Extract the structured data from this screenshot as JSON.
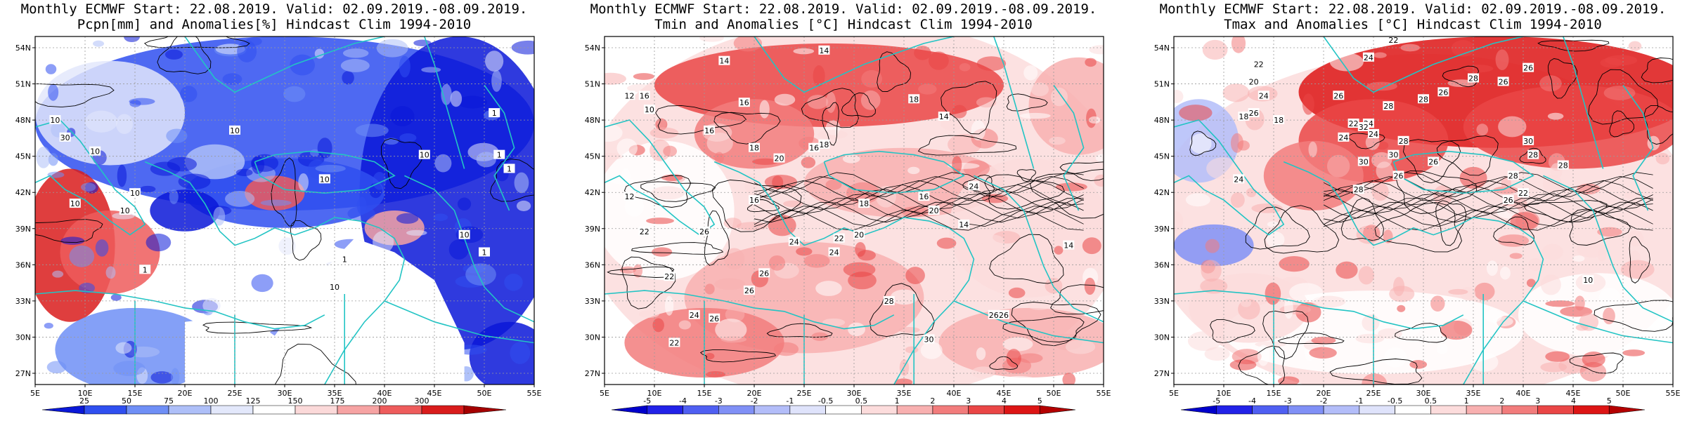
{
  "panels": [
    {
      "title_line1": "Monthly ECMWF Start: 22.08.2019. Valid: 02.09.2019.-08.09.2019.",
      "title_line2": "Pcpn[mm] and Anomalies[%] Hindcast Clim 1994-2010",
      "variable": "precipitation",
      "colorbar_ticks": [
        "25",
        "50",
        "75",
        "100",
        "125",
        "150",
        "175",
        "200",
        "300"
      ],
      "colorbar_colors": [
        "#0a18d8",
        "#2f4ff0",
        "#6f8ff6",
        "#aebff8",
        "#e3e8fb",
        "#ffffff",
        "#fbd9d9",
        "#f6a3a3",
        "#ee5c5c",
        "#d91c1c",
        "#a50000"
      ],
      "contour_labels": [
        "10",
        "10",
        "10",
        "10",
        "10",
        "1",
        "1",
        "1",
        "10",
        "10",
        "10",
        "1",
        "1",
        "30",
        "10",
        "10",
        "1"
      ]
    },
    {
      "title_line1": "Monthly ECMWF Start: 22.08.2019. Valid: 02.09.2019.-08.09.2019.",
      "title_line2": "Tmin and Anomalies [°C] Hindcast Clim 1994-2010",
      "variable": "tmin",
      "colorbar_ticks": [
        "-5",
        "-4",
        "-3",
        "-2",
        "-1",
        "-0.5",
        "0.5",
        "1",
        "2",
        "3",
        "4",
        "5"
      ],
      "colorbar_colors": [
        "#0000cc",
        "#2222e8",
        "#4f5ff2",
        "#8090f6",
        "#b3bdf9",
        "#dfe3fb",
        "#ffffff",
        "#fcdcdc",
        "#f8b0b0",
        "#f27c7c",
        "#ea4646",
        "#dd1515",
        "#b40000"
      ],
      "contour_labels": [
        "14",
        "14",
        "16",
        "16",
        "18",
        "12",
        "10",
        "16",
        "14",
        "16",
        "18",
        "20",
        "18",
        "16",
        "20",
        "12",
        "22",
        "16",
        "14",
        "24",
        "26",
        "22",
        "26",
        "24",
        "26",
        "24",
        "22",
        "20",
        "18",
        "26",
        "26",
        "28",
        "30",
        "22",
        "26",
        "14",
        "24"
      ]
    },
    {
      "title_line1": "Monthly ECMWF Start: 22.08.2019. Valid: 02.09.2019.-08.09.2019.",
      "title_line2": "Tmax and Anomalies [°C] Hindcast Clim 1994-2010",
      "variable": "tmax",
      "colorbar_ticks": [
        "-5",
        "-4",
        "-3",
        "-2",
        "-1",
        "-0.5",
        "0.5",
        "1",
        "2",
        "3",
        "4",
        "5"
      ],
      "colorbar_colors": [
        "#0000cc",
        "#2222e8",
        "#4f5ff2",
        "#8090f6",
        "#b3bdf9",
        "#dfe3fb",
        "#ffffff",
        "#fcdcdc",
        "#f8b0b0",
        "#f27c7c",
        "#ea4646",
        "#dd1515",
        "#b40000"
      ],
      "contour_labels": [
        "22",
        "22",
        "20",
        "24",
        "26",
        "24",
        "26",
        "28",
        "28",
        "24",
        "26",
        "18",
        "22",
        "24",
        "30",
        "26",
        "28",
        "30",
        "26",
        "28",
        "18",
        "24",
        "26",
        "22",
        "28",
        "26",
        "26",
        "28",
        "30",
        "28",
        "28",
        "32",
        "10",
        "24"
      ]
    }
  ],
  "axes": {
    "lat_ticks": [
      "54N",
      "51N",
      "48N",
      "45N",
      "42N",
      "39N",
      "36N",
      "33N",
      "30N",
      "27N"
    ],
    "lon_ticks": [
      "5E",
      "10E",
      "15E",
      "20E",
      "25E",
      "30E",
      "35E",
      "40E",
      "45E",
      "50E",
      "55E"
    ]
  },
  "colors": {
    "coast": "#22c4c4",
    "contour": "#000000",
    "grid": "#9a9a9a"
  }
}
